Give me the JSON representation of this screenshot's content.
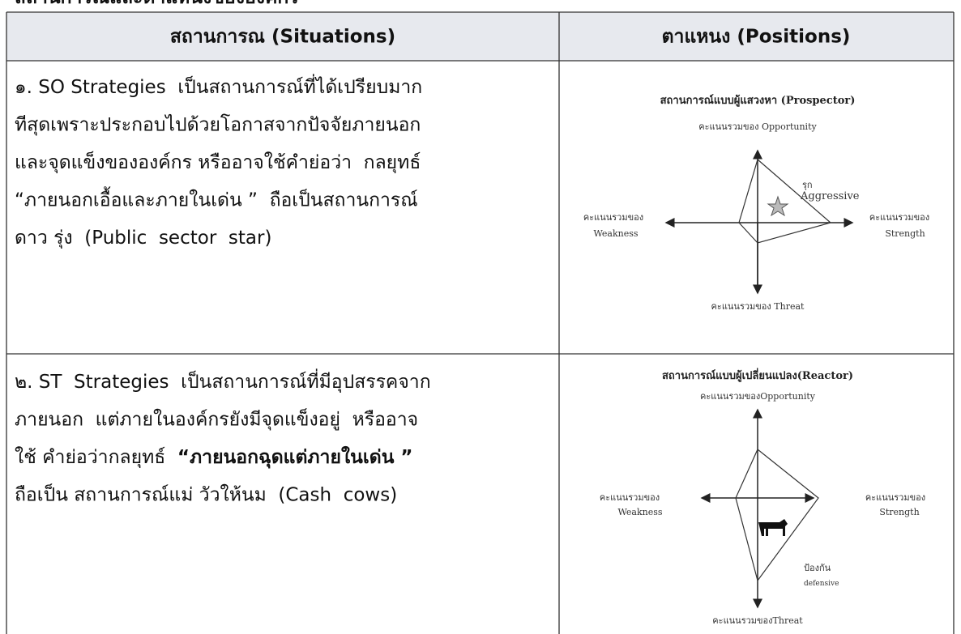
{
  "heading": "สถานการณ์และตำแหน่งขององค์กร",
  "table": {
    "headers": [
      "สถานการณ (Situations)",
      "ตาแหนง  (Positions)"
    ],
    "rows": [
      {
        "situation": [
          [
            {
              "text": "๑. SO Strategies  เป็นสถานการณ์ที่ได้เปรียบมาก"
            }
          ],
          [
            {
              "text": "ทีสุดเพราะประกอบไปด้วยโอกาสจากปัจจัยภายนอก"
            }
          ],
          [
            {
              "text": "และจุดแข็งขององค์กร หรืออาจใช้คำย่อว่า  กลยุทธ์"
            }
          ],
          [
            {
              "text": "“ภายนอกเอื้อและภายในเด่น ”  ถือเป็นสถานการณ์"
            }
          ],
          [
            {
              "text": "ดาว รุ่ง  (Public  sector  star)"
            }
          ]
        ],
        "position": {
          "title": "สถานการณ์แบบผู้แสวงหา (Prospector)",
          "top_label": "คะแนนรวมของ Opportunity",
          "left_label": [
            "คะแนนรวมของ",
            "Weakness"
          ],
          "right_label": [
            "คะแนนรวมของ",
            "Strength"
          ],
          "bottom_label": "คะแนนรวมของ Threat",
          "quadrant_label": [
            "รุก",
            "Aggressive"
          ]
        }
      },
      {
        "situation": [
          [
            {
              "text": "๒. ST  Strategies  เป็นสถานการณ์ที่มีอุปสรรคจาก"
            }
          ],
          [
            {
              "text": "ภายนอก  แต่ภายในองค์กรยังมีจุดแข็งอยู่  หรืออาจ"
            }
          ],
          [
            {
              "text": "ใช้ คำย่อว่ากลยุทธ์  "
            },
            {
              "text": "“ภายนอกฉุดแต่ภายในเด่น ”",
              "bold": true
            }
          ],
          [
            {
              "text": "ถือเป็น สถานการณ์แม่ วัวให้นม  (Cash  cows)"
            }
          ]
        ],
        "position": {
          "title": "สถานการณ์แบบผู้เปลี่ยนแปลง(Reactor)",
          "top_label": "คะแนนรวมของOpportunity",
          "left_label": [
            "คะแนนรวมของ",
            "Weakness"
          ],
          "right_label": [
            "คะแนนรวมของ",
            "Strength"
          ],
          "bottom_label": "คะแนนรวมของThreat",
          "quadrant_label": [
            "ป้องกัน",
            "defensive"
          ]
        }
      }
    ]
  }
}
